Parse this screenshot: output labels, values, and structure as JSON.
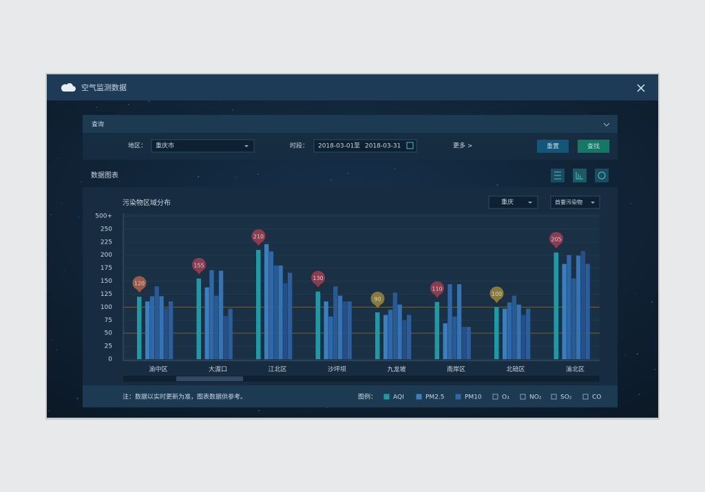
{
  "window": {
    "title": "空气监测数据"
  },
  "query": {
    "title": "查询",
    "region_label": "地区：",
    "region_value": "重庆市",
    "period_label": "时段：",
    "start": "2018-03-01",
    "to": "至",
    "end": "2018-03-31",
    "more": "更多 >",
    "reset": "重置",
    "search": "查找"
  },
  "section": {
    "title": "数据图表"
  },
  "chart_data": {
    "type": "bar",
    "title": "污染物区域分布",
    "city_select": "重庆",
    "pollutant_select": "首要污染物",
    "categories": [
      "渝中区",
      "大渡口",
      "江北区",
      "沙坪坝",
      "九龙坡",
      "南岸区",
      "北碚区",
      "渝北区"
    ],
    "series": [
      {
        "name": "AQI",
        "color": "#1e9aa6",
        "checked": true,
        "values": [
          120,
          155,
          210,
          130,
          90,
          110,
          100,
          205
        ]
      },
      {
        "name": "PM2.5",
        "color": "#3a7fc0",
        "checked": true,
        "values": [
          111,
          138,
          221,
          111,
          85,
          69,
          97,
          183
        ]
      },
      {
        "name": "PM10",
        "color": "#2f68a8",
        "checked": true,
        "values": [
          121,
          171,
          207,
          82,
          95,
          144,
          109,
          200
        ]
      },
      {
        "name": "O₃",
        "color": "#2a5a92",
        "checked": false,
        "values": [
          140,
          122,
          180,
          140,
          128,
          82,
          122,
          155
        ]
      },
      {
        "name": "NO₂",
        "color": "#3574b4",
        "checked": false,
        "values": [
          121,
          170,
          180,
          122,
          105,
          144,
          105,
          199
        ]
      },
      {
        "name": "SO₂",
        "color": "#254f86",
        "checked": false,
        "values": [
          98,
          83,
          146,
          111,
          75,
          62,
          85,
          208
        ]
      },
      {
        "name": "CO",
        "color": "#2c5e9c",
        "checked": false,
        "values": [
          111,
          97,
          166,
          111,
          85,
          62,
          97,
          183
        ]
      }
    ],
    "value_label_colors": [
      "#9a5a48",
      "#8c3c4c",
      "#8c3c4c",
      "#8c3c4c",
      "#8a7a3a",
      "#8c3c4c",
      "#8a7a3a",
      "#8c3c4c"
    ],
    "ylim": [
      0,
      275
    ],
    "yticks": [
      0,
      25,
      50,
      75,
      100,
      125,
      150,
      175,
      200,
      225,
      250,
      {
        "value": 275,
        "label": "500+"
      }
    ],
    "reference_lines": [
      50,
      100
    ],
    "grid": true,
    "legend_label": "图例：",
    "note": "注：数据以实时更新为准，图表数据供参考。"
  }
}
